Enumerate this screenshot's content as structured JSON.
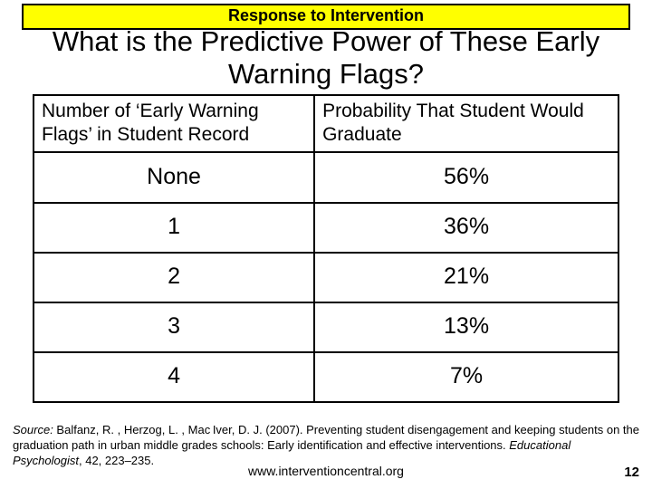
{
  "banner": {
    "text": "Response to Intervention",
    "bg_color": "#ffff00",
    "border_color": "#000000",
    "fontsize": 18
  },
  "title": {
    "text": "What is the Predictive Power of These Early Warning Flags?",
    "fontsize": 31
  },
  "table": {
    "type": "table",
    "columns": [
      {
        "label": "Number of ‘Early Warning Flags’ in Student Record",
        "width_pct": 48
      },
      {
        "label": "Probability That Student Would Graduate",
        "width_pct": 52
      }
    ],
    "rows": [
      [
        "None",
        "56%"
      ],
      [
        "1",
        "36%"
      ],
      [
        "2",
        "21%"
      ],
      [
        "3",
        "13%"
      ],
      [
        "4",
        "7%"
      ]
    ],
    "header_fontsize": 21,
    "cell_fontsize": 25,
    "border_color": "#000000"
  },
  "source": {
    "label": "Source:",
    "citation_pre": " Balfanz, R. , Herzog, L. , Mac Iver, D. J. (2007). Preventing student disengagement and keeping students on the graduation path in urban middle grades schools: Early identification and effective interventions. ",
    "journal": "Educational Psychologist",
    "citation_post": ", 42, 223–235.",
    "fontsize": 13
  },
  "footer": {
    "url": "www.interventioncentral.org",
    "fontsize": 14
  },
  "page_number": "12"
}
